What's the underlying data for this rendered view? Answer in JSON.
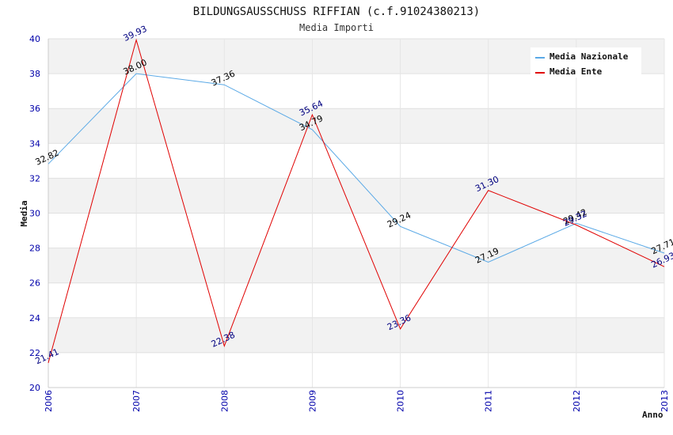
{
  "chart_data": {
    "type": "line",
    "title": "BILDUNGSAUSSCHUSS RIFFIAN (c.f.91024380213)",
    "subtitle": "Media Importi",
    "xlabel": "Anno",
    "ylabel": "Media",
    "categories": [
      "2006",
      "2007",
      "2008",
      "2009",
      "2010",
      "2011",
      "2012",
      "2013"
    ],
    "y_ticks": [
      "20",
      "22",
      "24",
      "26",
      "28",
      "30",
      "32",
      "34",
      "36",
      "38",
      "40"
    ],
    "ylim": [
      20,
      40
    ],
    "grid": true,
    "legend_position": "top-right",
    "series": [
      {
        "name": "Media Nazionale",
        "color": "#5aa9e6",
        "label_color": "#000000",
        "values": [
          32.82,
          38.0,
          37.36,
          34.79,
          29.24,
          27.19,
          29.42,
          27.71
        ],
        "labels": [
          "32.82",
          "38.00",
          "37.36",
          "34.79",
          "29.24",
          "27.19",
          "29.42",
          "27.71"
        ]
      },
      {
        "name": "Media Ente",
        "color": "#e00000",
        "label_color": "#000080",
        "values": [
          21.41,
          39.93,
          22.38,
          35.64,
          23.36,
          31.3,
          29.32,
          26.93
        ],
        "labels": [
          "21.41",
          "39.93",
          "22.38",
          "35.64",
          "23.36",
          "31.30",
          "29.32",
          "26.93"
        ]
      }
    ]
  }
}
